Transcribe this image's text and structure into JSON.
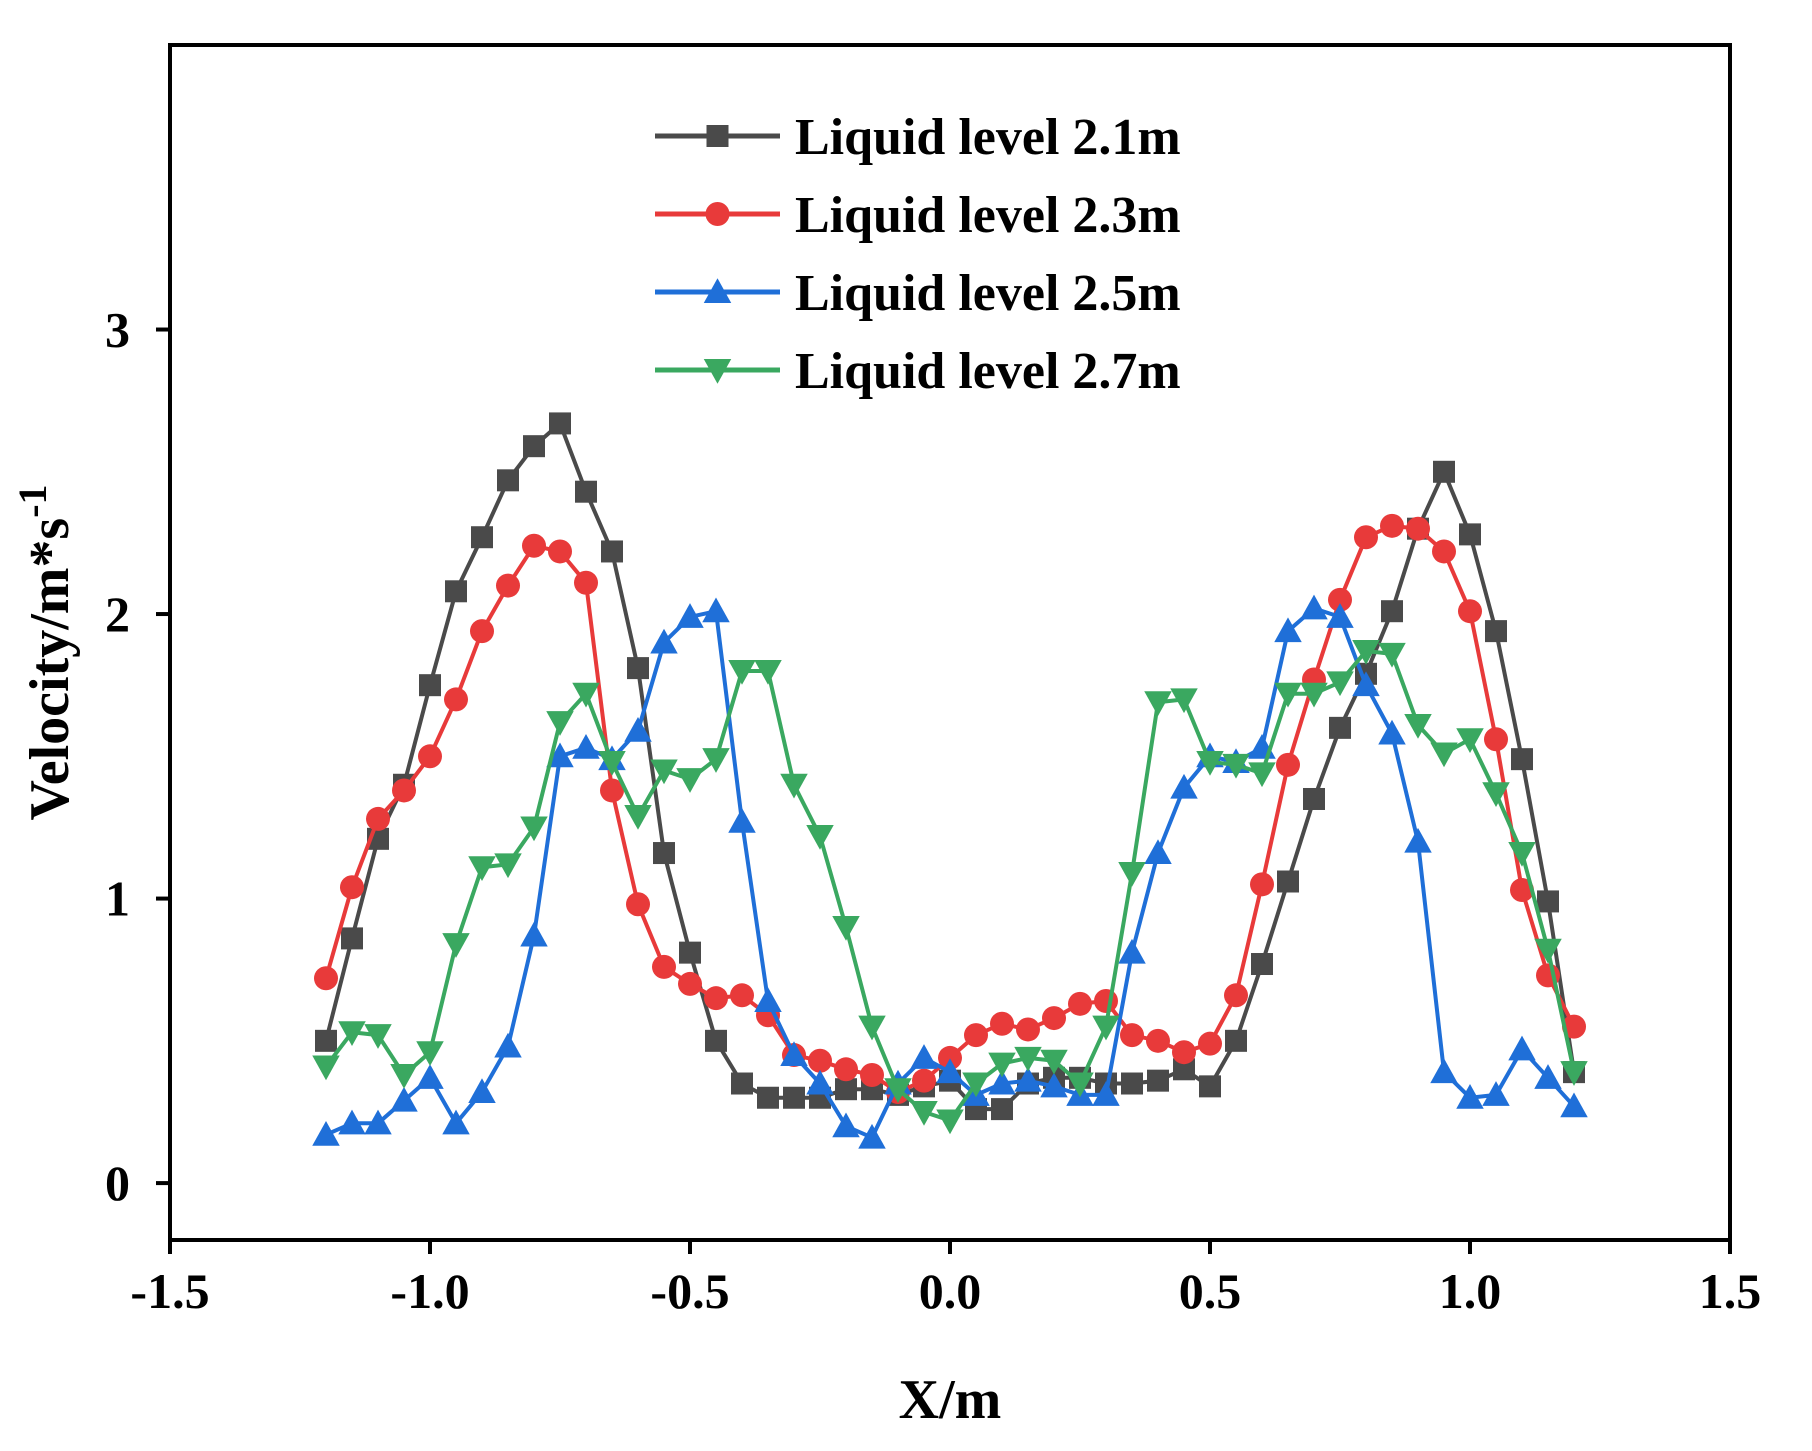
{
  "chart_data": {
    "type": "line",
    "title": "",
    "xlabel": "X/m",
    "ylabel": "Velocity/m*s",
    "ylabel_superscript": "-1",
    "xlim": [
      -1.5,
      1.5
    ],
    "ylim": [
      -0.2,
      4.0
    ],
    "xticks": [
      -1.5,
      -1.0,
      -0.5,
      0.0,
      0.5,
      1.0,
      1.5
    ],
    "xtick_labels": [
      "-1.5",
      "-1.0",
      "-0.5",
      "0.0",
      "0.5",
      "1.0",
      "1.5"
    ],
    "yticks": [
      0,
      1,
      2,
      3
    ],
    "ytick_labels": [
      "0",
      "1",
      "2",
      "3"
    ],
    "grid": false,
    "legend_position": "top-center",
    "x": [
      -1.2,
      -1.15,
      -1.1,
      -1.05,
      -1.0,
      -0.95,
      -0.9,
      -0.85,
      -0.8,
      -0.75,
      -0.7,
      -0.65,
      -0.6,
      -0.55,
      -0.5,
      -0.45,
      -0.4,
      -0.35,
      -0.3,
      -0.25,
      -0.2,
      -0.15,
      -0.1,
      -0.05,
      0.0,
      0.05,
      0.1,
      0.15,
      0.2,
      0.25,
      0.3,
      0.35,
      0.4,
      0.45,
      0.5,
      0.55,
      0.6,
      0.65,
      0.7,
      0.75,
      0.8,
      0.85,
      0.9,
      0.95,
      1.0,
      1.05,
      1.1,
      1.15,
      1.2
    ],
    "series": [
      {
        "name": "Liquid level 2.1m",
        "color": "#4a4a4a",
        "marker": "square",
        "values": [
          0.5,
          0.86,
          1.21,
          1.4,
          1.75,
          2.08,
          2.27,
          2.47,
          2.59,
          2.67,
          2.43,
          2.22,
          1.81,
          1.16,
          0.81,
          0.5,
          0.35,
          0.3,
          0.3,
          0.3,
          0.33,
          0.33,
          0.31,
          0.34,
          0.36,
          0.26,
          0.26,
          0.35,
          0.37,
          0.37,
          0.35,
          0.35,
          0.36,
          0.4,
          0.34,
          0.5,
          0.77,
          1.06,
          1.35,
          1.6,
          1.79,
          2.01,
          2.3,
          2.5,
          2.28,
          1.94,
          1.49,
          0.99,
          0.39
        ]
      },
      {
        "name": "Liquid level 2.3m",
        "color": "#e83a3a",
        "marker": "circle",
        "values": [
          0.72,
          1.04,
          1.28,
          1.38,
          1.5,
          1.7,
          1.94,
          2.1,
          2.24,
          2.22,
          2.11,
          1.38,
          0.98,
          0.76,
          0.7,
          0.65,
          0.66,
          0.59,
          0.45,
          0.43,
          0.4,
          0.38,
          0.32,
          0.36,
          0.44,
          0.52,
          0.56,
          0.54,
          0.58,
          0.63,
          0.64,
          0.52,
          0.5,
          0.46,
          0.49,
          0.66,
          1.05,
          1.47,
          1.77,
          2.05,
          2.27,
          2.31,
          2.3,
          2.22,
          2.01,
          1.56,
          1.03,
          0.73,
          0.55
        ]
      },
      {
        "name": "Liquid level 2.5m",
        "color": "#1f6fd8",
        "marker": "triangle-up",
        "values": [
          0.17,
          0.21,
          0.21,
          0.29,
          0.37,
          0.21,
          0.32,
          0.48,
          0.87,
          1.5,
          1.53,
          1.49,
          1.59,
          1.9,
          1.99,
          2.01,
          1.27,
          0.64,
          0.45,
          0.35,
          0.2,
          0.16,
          0.35,
          0.44,
          0.39,
          0.31,
          0.35,
          0.36,
          0.34,
          0.31,
          0.31,
          0.81,
          1.16,
          1.39,
          1.5,
          1.48,
          1.53,
          1.94,
          2.02,
          1.99,
          1.75,
          1.58,
          1.2,
          0.39,
          0.3,
          0.31,
          0.47,
          0.37,
          0.27
        ]
      },
      {
        "name": "Liquid level 2.7m",
        "color": "#3aa860",
        "marker": "triangle-down",
        "values": [
          0.41,
          0.53,
          0.52,
          0.38,
          0.46,
          0.84,
          1.11,
          1.12,
          1.25,
          1.62,
          1.72,
          1.48,
          1.29,
          1.45,
          1.42,
          1.49,
          1.8,
          1.8,
          1.4,
          1.22,
          0.9,
          0.55,
          0.33,
          0.25,
          0.22,
          0.35,
          0.42,
          0.44,
          0.43,
          0.35,
          0.55,
          1.09,
          1.69,
          1.7,
          1.48,
          1.47,
          1.44,
          1.72,
          1.72,
          1.76,
          1.87,
          1.86,
          1.61,
          1.51,
          1.56,
          1.37,
          1.16,
          0.82,
          0.39
        ]
      }
    ]
  }
}
